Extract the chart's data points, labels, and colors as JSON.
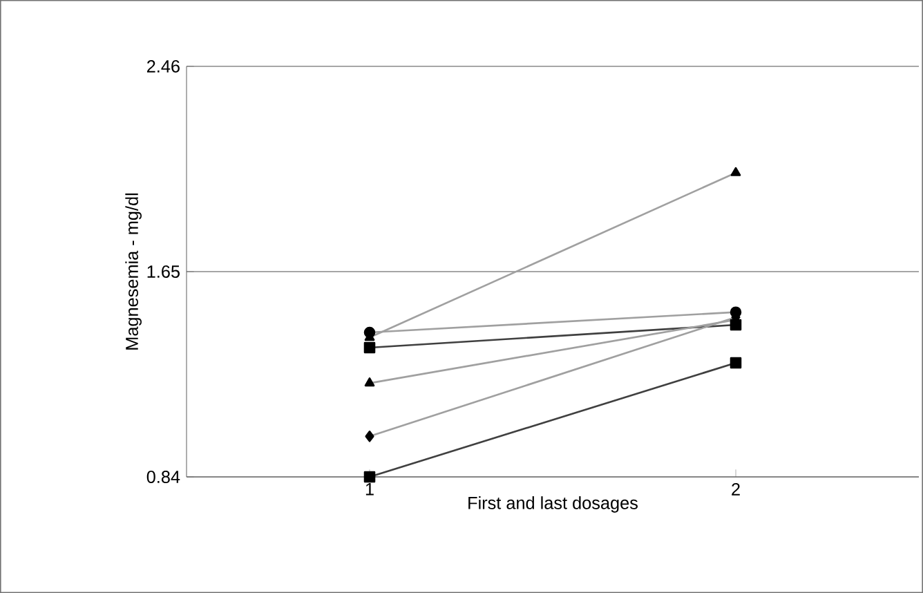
{
  "chart_data": {
    "type": "line",
    "xlabel": "First and last dosages",
    "ylabel": "Magnesemia - mg/dl",
    "categories": [
      "1",
      "2"
    ],
    "series": [
      {
        "color": "#a0a0a0",
        "marker": "circle",
        "values": [
          1.41,
          1.49
        ]
      },
      {
        "color": "#a0a0a0",
        "marker": "triangle",
        "values": [
          1.39,
          2.04
        ]
      },
      {
        "color": "#404040",
        "marker": "square",
        "values": [
          1.35,
          1.44
        ]
      },
      {
        "color": "#a0a0a0",
        "marker": "triangle",
        "values": [
          1.21,
          1.46
        ]
      },
      {
        "color": "#a0a0a0",
        "marker": "diamond",
        "values": [
          1.0,
          1.47
        ]
      },
      {
        "color": "#404040",
        "marker": "square",
        "values": [
          0.84,
          1.29
        ]
      }
    ],
    "ylim": [
      0.84,
      2.46
    ],
    "yticks": [
      0.84,
      1.65,
      2.46
    ],
    "grid": "y"
  }
}
